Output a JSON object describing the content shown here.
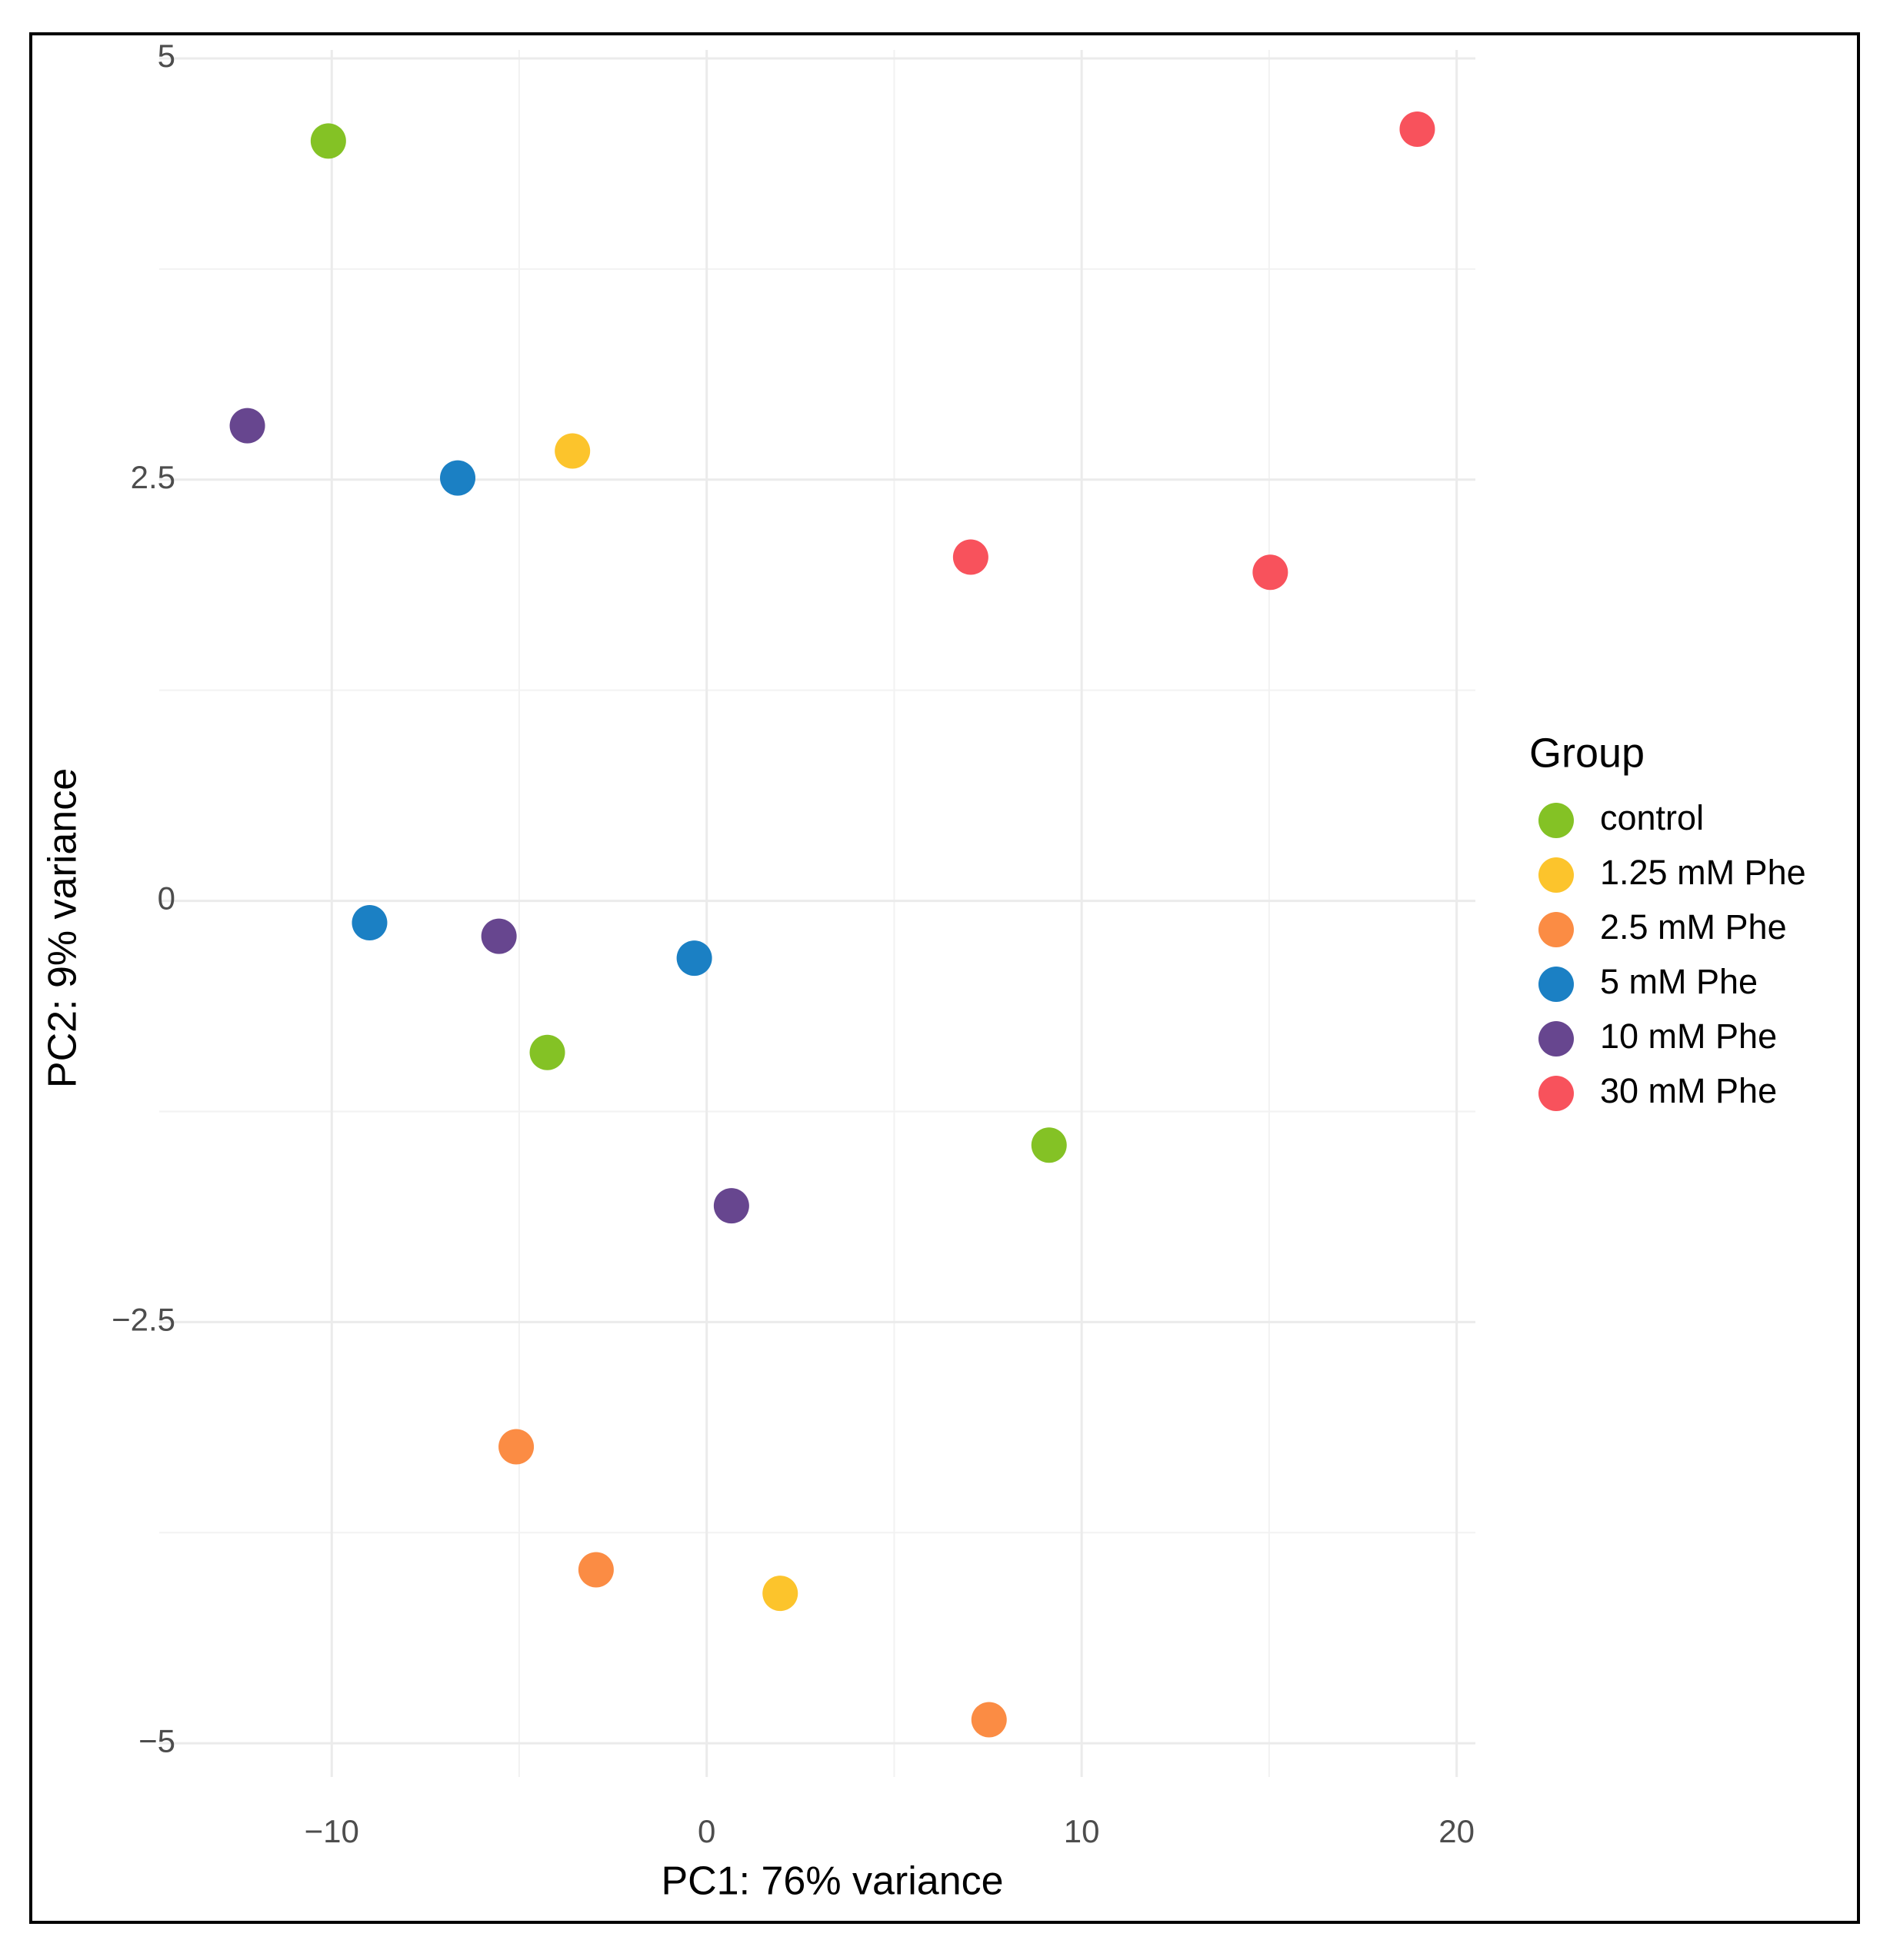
{
  "chart_data": {
    "type": "scatter",
    "x_label": "PC1: 76% variance",
    "y_label": "PC2: 9% variance",
    "legend_title": "Group",
    "legend": "right",
    "grid": true,
    "xlim": [
      -14.6,
      20.5
    ],
    "ylim": [
      -5.2,
      5.05
    ],
    "xticks": [
      {
        "value": -10,
        "label": "−10"
      },
      0,
      10,
      20
    ],
    "yticks": [
      {
        "value": -5,
        "label": "−5"
      },
      {
        "value": -2.5,
        "label": "−2.5"
      },
      0,
      2.5,
      5
    ],
    "xminor": [
      -5,
      5,
      15
    ],
    "yminor": [
      -3.75,
      -1.25,
      1.25,
      3.75
    ],
    "series": [
      {
        "name": "control",
        "color": "#84c225",
        "x": [
          -10.09,
          -4.25,
          9.13
        ],
        "values": [
          4.51,
          -0.9,
          -1.45
        ]
      },
      {
        "name": "1.25 mM Phe",
        "color": "#fcc42c",
        "x": [
          -3.58,
          1.96
        ],
        "values": [
          2.67,
          -4.11
        ]
      },
      {
        "name": "2.5 mM Phe",
        "color": "#fb8c44",
        "x": [
          -5.08,
          -2.95,
          7.53
        ],
        "values": [
          -3.24,
          -3.97,
          -4.86
        ]
      },
      {
        "name": "5 mM Phe",
        "color": "#1b80c4",
        "x": [
          -6.64,
          -8.99,
          -0.33
        ],
        "values": [
          2.51,
          -0.13,
          -0.34
        ]
      },
      {
        "name": "10 mM Phe",
        "color": "#67468f",
        "x": [
          -12.25,
          -5.54,
          0.66
        ],
        "values": [
          2.82,
          -0.21,
          -1.81
        ]
      },
      {
        "name": "30 mM Phe",
        "color": "#f8525c",
        "x": [
          18.95,
          7.04,
          15.03
        ],
        "values": [
          4.58,
          2.04,
          1.95
        ]
      }
    ]
  }
}
